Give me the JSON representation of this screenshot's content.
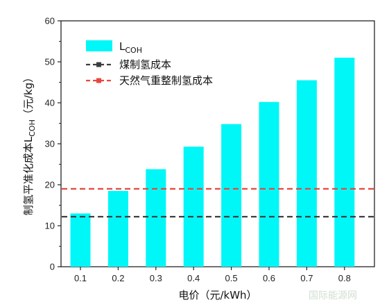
{
  "chart_data": {
    "type": "bar",
    "categories": [
      "0.1",
      "0.2",
      "0.3",
      "0.4",
      "0.5",
      "0.6",
      "0.7",
      "0.8"
    ],
    "series": [
      {
        "name": "L",
        "name_sub": "COH",
        "values": [
          13.0,
          18.5,
          23.8,
          29.3,
          34.8,
          40.2,
          45.5,
          51.0
        ],
        "color": "#00f7f7"
      }
    ],
    "reference_lines": [
      {
        "name": "煤制氢成本",
        "value": 12.2,
        "color": "#3d3d3d"
      },
      {
        "name": "天然气重整制氢成本",
        "value": 19.0,
        "color": "#e8473f"
      }
    ],
    "ylabel_prefix": "制氢平准化成本L",
    "ylabel_sub": "COH",
    "ylabel_suffix": "（元/kg）",
    "xlabel": "电价（元/kWh）",
    "yticks": [
      "0",
      "10",
      "20",
      "30",
      "40",
      "50",
      "60"
    ],
    "ylim": [
      0,
      60
    ],
    "grid": false,
    "legend": "top-left"
  },
  "watermark": "国际能源网"
}
